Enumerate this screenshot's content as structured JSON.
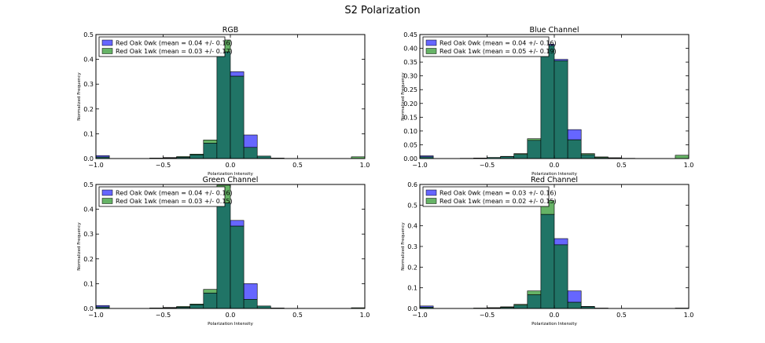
{
  "figure": {
    "title": "S2 Polarization"
  },
  "colors": {
    "blue": "#0000ff",
    "green": "#008000",
    "overlap": "#207466"
  },
  "chart_data": [
    {
      "type": "histogram",
      "title": "RGB",
      "xlabel": "Polarization Intensity",
      "ylabel": "Normalized Frequency",
      "xlim": [
        -1.0,
        1.0
      ],
      "ylim": [
        0,
        0.5
      ],
      "xticks": [
        "−1.0",
        "−0.5",
        "0.0",
        "0.5",
        "1.0"
      ],
      "yticks": [
        "0.0",
        "0.1",
        "0.2",
        "0.3",
        "0.4",
        "0.5"
      ],
      "legend_position": "top-left",
      "bin_edges": [
        -1.0,
        -0.9,
        -0.8,
        -0.7,
        -0.6,
        -0.5,
        -0.4,
        -0.3,
        -0.2,
        -0.1,
        0.0,
        0.1,
        0.2,
        0.3,
        0.4,
        0.5,
        0.6,
        0.7,
        0.8,
        0.9,
        1.0
      ],
      "series": [
        {
          "name": "Red Oak 0wk (mean = 0.04 +/- 0.16)",
          "color": "#0000ff",
          "values": [
            0.012,
            0,
            0,
            0,
            0.001,
            0.002,
            0.005,
            0.015,
            0.062,
            0.43,
            0.35,
            0.095,
            0.01,
            0.002,
            0,
            0,
            0,
            0,
            0,
            0
          ]
        },
        {
          "name": "Red Oak 1wk (mean = 0.03 +/- 0.17)",
          "color": "#008000",
          "values": [
            0.006,
            0,
            0,
            0,
            0.002,
            0.004,
            0.008,
            0.018,
            0.075,
            0.478,
            0.332,
            0.045,
            0.01,
            0.002,
            0,
            0,
            0,
            0,
            0,
            0.007
          ]
        }
      ]
    },
    {
      "type": "histogram",
      "title": "Blue Channel",
      "xlabel": "Polarization Intensity",
      "ylabel": "Normalized Frequency",
      "xlim": [
        -1.0,
        1.0
      ],
      "ylim": [
        0,
        0.45
      ],
      "xticks": [
        "−1.0",
        "−0.5",
        "0.0",
        "0.5",
        "1.0"
      ],
      "yticks": [
        "0.00",
        "0.05",
        "0.10",
        "0.15",
        "0.20",
        "0.25",
        "0.30",
        "0.35",
        "0.40",
        "0.45"
      ],
      "legend_position": "top-left",
      "bin_edges": [
        -1.0,
        -0.9,
        -0.8,
        -0.7,
        -0.6,
        -0.5,
        -0.4,
        -0.3,
        -0.2,
        -0.1,
        0.0,
        0.1,
        0.2,
        0.3,
        0.4,
        0.5,
        0.6,
        0.7,
        0.8,
        0.9,
        1.0
      ],
      "series": [
        {
          "name": "Red Oak 0wk (mean = 0.04 +/- 0.16)",
          "color": "#0000ff",
          "values": [
            0.01,
            0,
            0,
            0.001,
            0.002,
            0.004,
            0.007,
            0.015,
            0.066,
            0.415,
            0.36,
            0.105,
            0.014,
            0.003,
            0.002,
            0,
            0,
            0,
            0,
            0
          ]
        },
        {
          "name": "Red Oak 1wk (mean = 0.05 +/- 0.19)",
          "color": "#008000",
          "values": [
            0.006,
            0,
            0,
            0.001,
            0.002,
            0.004,
            0.008,
            0.018,
            0.072,
            0.41,
            0.355,
            0.068,
            0.018,
            0.006,
            0.003,
            0.001,
            0,
            0,
            0,
            0.012
          ]
        }
      ]
    },
    {
      "type": "histogram",
      "title": "Green Channel",
      "xlabel": "Polarization Intensity",
      "ylabel": "Normalized Frequency",
      "xlim": [
        -1.0,
        1.0
      ],
      "ylim": [
        0,
        0.5
      ],
      "xticks": [
        "−1.0",
        "−0.5",
        "0.0",
        "0.5",
        "1.0"
      ],
      "yticks": [
        "0.0",
        "0.1",
        "0.2",
        "0.3",
        "0.4",
        "0.5"
      ],
      "legend_position": "top-left",
      "bin_edges": [
        -1.0,
        -0.9,
        -0.8,
        -0.7,
        -0.6,
        -0.5,
        -0.4,
        -0.3,
        -0.2,
        -0.1,
        0.0,
        0.1,
        0.2,
        0.3,
        0.4,
        0.5,
        0.6,
        0.7,
        0.8,
        0.9,
        1.0
      ],
      "series": [
        {
          "name": "Red Oak 0wk (mean = 0.04 +/- 0.16)",
          "color": "#0000ff",
          "values": [
            0.012,
            0,
            0,
            0,
            0.001,
            0.002,
            0.005,
            0.015,
            0.062,
            0.425,
            0.355,
            0.1,
            0.01,
            0.002,
            0,
            0,
            0,
            0,
            0,
            0
          ]
        },
        {
          "name": "Red Oak 1wk (mean = 0.03 +/- 0.15)",
          "color": "#008000",
          "values": [
            0.006,
            0,
            0,
            0,
            0.002,
            0.004,
            0.008,
            0.018,
            0.077,
            0.497,
            0.332,
            0.037,
            0.01,
            0.002,
            0,
            0,
            0,
            0,
            0,
            0.003
          ]
        }
      ]
    },
    {
      "type": "histogram",
      "title": "Red Channel",
      "xlabel": "Polarization Intensity",
      "ylabel": "Normalized Frequency",
      "xlim": [
        -1.0,
        1.0
      ],
      "ylim": [
        0,
        0.6
      ],
      "xticks": [
        "−1.0",
        "−0.5",
        "0.0",
        "0.5",
        "1.0"
      ],
      "yticks": [
        "0.0",
        "0.1",
        "0.2",
        "0.3",
        "0.4",
        "0.5",
        "0.6"
      ],
      "legend_position": "top-left",
      "bin_edges": [
        -1.0,
        -0.9,
        -0.8,
        -0.7,
        -0.6,
        -0.5,
        -0.4,
        -0.3,
        -0.2,
        -0.1,
        0.0,
        0.1,
        0.2,
        0.3,
        0.4,
        0.5,
        0.6,
        0.7,
        0.8,
        0.9,
        1.0
      ],
      "series": [
        {
          "name": "Red Oak 0wk (mean = 0.03 +/- 0.16)",
          "color": "#0000ff",
          "values": [
            0.012,
            0,
            0,
            0,
            0.001,
            0.002,
            0.005,
            0.016,
            0.066,
            0.455,
            0.338,
            0.085,
            0.01,
            0.002,
            0,
            0,
            0,
            0,
            0,
            0
          ]
        },
        {
          "name": "Red Oak 1wk (mean = 0.02 +/- 0.15)",
          "color": "#008000",
          "values": [
            0.006,
            0,
            0,
            0,
            0.002,
            0.004,
            0.008,
            0.02,
            0.085,
            0.522,
            0.308,
            0.03,
            0.008,
            0.002,
            0,
            0,
            0,
            0,
            0,
            0.002
          ]
        }
      ]
    }
  ]
}
